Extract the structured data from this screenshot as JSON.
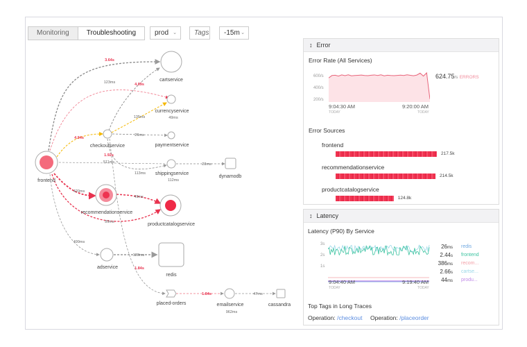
{
  "toolbar": {
    "tabs": [
      "Monitoring",
      "Troubleshooting"
    ],
    "environment": "prod",
    "tags_placeholder": "Tags",
    "time_range": "-15m"
  },
  "service_map": {
    "nodes": {
      "frontend": "frontend",
      "cartservice": "cartservice",
      "currencyservice": "currencyservice",
      "checkoutservice": "checkoutservice",
      "paymentservice": "paymentservice",
      "shippingservice": "shippingservice",
      "dynamodb": "dynamodb",
      "recommendationservice": "recommendationservice",
      "productcatalogservice": "productcatalogservice",
      "adservice": "adservice",
      "redis": "redis",
      "placed_orders": "placed-orders",
      "emailservice": "emailservice",
      "cassandra": "cassandra"
    },
    "edges": {
      "fe_cart": "3.64s",
      "fe_currency": "123ms",
      "checkout_cart": "4.69s",
      "fe_checkout": "4.94s",
      "checkout_currency": "135ms",
      "currency_self": "49ms",
      "checkout_payment": "26ms",
      "fe_shipping": "511ms",
      "checkout_self": "1.92s",
      "checkout_shipping": "113ms",
      "shipping_self": "112ms",
      "shipping_dynamodb": "23ms",
      "fe_recommendation": "420ms",
      "rec_productcatalog": "49ms",
      "fe_productcatalog": "89ms",
      "fe_ad": "499ms",
      "ad_redis": "128ms",
      "checkout_placed": "1.84s",
      "placed_email": "1.84s",
      "email_self": "962ms",
      "email_cassandra": "47ms"
    }
  },
  "error_panel": {
    "title": "Error",
    "rate_title": "Error Rate (All Services)",
    "y_ticks": [
      "600/s",
      "400/s",
      "200/s"
    ],
    "current_value": "624.75",
    "current_unit": "/s",
    "current_label": "ERRORS",
    "x_start": "9:04:30 AM",
    "x_end": "9:20:00 AM",
    "x_sub": "TODAY",
    "series": [
      560,
      600,
      605,
      590,
      610,
      598,
      612,
      595,
      600,
      604,
      608,
      600,
      598,
      605,
      610,
      600,
      612,
      595,
      605,
      600,
      598,
      602,
      606,
      600,
      612,
      604,
      596,
      608,
      640,
      590,
      645,
      200
    ],
    "sources_title": "Error Sources",
    "sources": [
      {
        "name": "frontend",
        "value": "217.5k",
        "count": 217.5
      },
      {
        "name": "recommendationservice",
        "value": "214.5k",
        "count": 214.5
      },
      {
        "name": "productcatalogservice",
        "value": "124.8k",
        "count": 124.8
      }
    ]
  },
  "latency_panel": {
    "title": "Latency",
    "chart_title": "Latency (P90) By Service",
    "y_ticks": [
      "3s",
      "2s",
      "1s"
    ],
    "x_start": "9:04:40 AM",
    "x_end": "9:19:40 AM",
    "x_sub": "TODAY",
    "legend": [
      {
        "value": "26",
        "unit": "ms",
        "name": "redis",
        "color": "#6fa8e0"
      },
      {
        "value": "2.44",
        "unit": "s",
        "name": "frontend",
        "color": "#3cc3a0"
      },
      {
        "value": "386",
        "unit": "ms",
        "name": "recom...",
        "color": "#f3a0a8"
      },
      {
        "value": "2.66",
        "unit": "s",
        "name": "cartse...",
        "color": "#9ad8e8"
      },
      {
        "value": "44",
        "unit": "ms",
        "name": "produ...",
        "color": "#c08ae8"
      }
    ],
    "tags_title": "Top Tags in Long Traces",
    "tags": [
      {
        "key": "Operation:",
        "value": "/checkout"
      },
      {
        "key": "Operation:",
        "value": "/placeorder"
      }
    ]
  }
}
